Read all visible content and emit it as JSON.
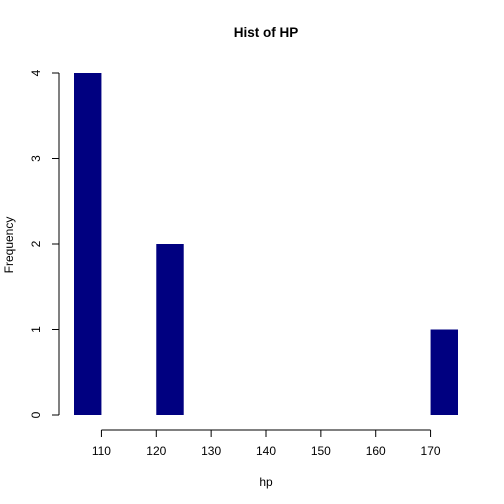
{
  "chart_data": {
    "type": "histogram",
    "title": "Hist of HP",
    "xlabel": "hp",
    "ylabel": "Frequency",
    "bar_color": "#000080",
    "xlim": [
      105,
      175
    ],
    "ylim": [
      0,
      4
    ],
    "bins": [
      {
        "start": 105,
        "end": 110,
        "count": 4
      },
      {
        "start": 110,
        "end": 115,
        "count": 0
      },
      {
        "start": 115,
        "end": 120,
        "count": 0
      },
      {
        "start": 120,
        "end": 125,
        "count": 2
      },
      {
        "start": 125,
        "end": 130,
        "count": 0
      },
      {
        "start": 130,
        "end": 135,
        "count": 0
      },
      {
        "start": 135,
        "end": 140,
        "count": 0
      },
      {
        "start": 140,
        "end": 145,
        "count": 0
      },
      {
        "start": 145,
        "end": 150,
        "count": 0
      },
      {
        "start": 150,
        "end": 155,
        "count": 0
      },
      {
        "start": 155,
        "end": 160,
        "count": 0
      },
      {
        "start": 160,
        "end": 165,
        "count": 0
      },
      {
        "start": 165,
        "end": 170,
        "count": 0
      },
      {
        "start": 170,
        "end": 175,
        "count": 1
      }
    ],
    "x_ticks": [
      110,
      120,
      130,
      140,
      150,
      160,
      170
    ],
    "y_ticks": [
      0,
      1,
      2,
      3,
      4
    ]
  }
}
